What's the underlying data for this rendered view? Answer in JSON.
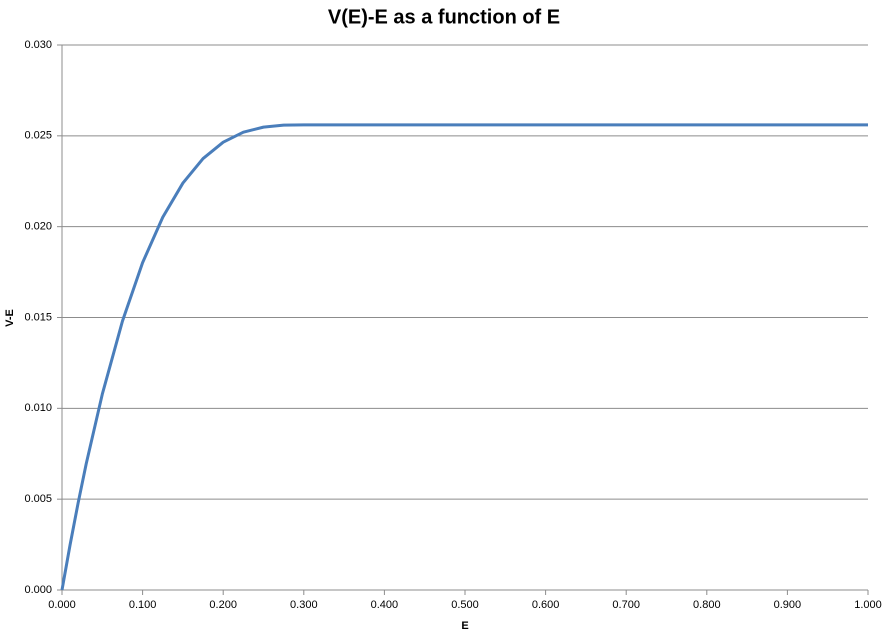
{
  "chart_data": {
    "type": "line",
    "title": "V(E)-E as a function of E",
    "x_label": "E",
    "y_label": "V-E",
    "x": [
      0,
      0.01,
      0.02,
      0.03,
      0.05,
      0.075,
      0.1,
      0.125,
      0.15,
      0.175,
      0.2,
      0.225,
      0.25,
      0.275,
      0.3,
      0.4,
      0.5,
      0.6,
      0.7,
      0.8,
      0.9,
      1.0
    ],
    "series": [
      {
        "name": "V-E",
        "color": "#4a7ebb",
        "values": [
          0,
          0.00248,
          0.00479,
          0.00694,
          0.01078,
          0.0148,
          0.01802,
          0.02052,
          0.0224,
          0.02375,
          0.02465,
          0.0252,
          0.02548,
          0.02559,
          0.0256,
          0.0256,
          0.0256,
          0.0256,
          0.0256,
          0.0256,
          0.0256,
          0.0256
        ]
      }
    ],
    "xlim": [
      0,
      1.0
    ],
    "ylim": [
      0,
      0.03
    ],
    "xticks": [
      {
        "value": 0,
        "label": "0.000"
      },
      {
        "value": 0.1,
        "label": "0.100"
      },
      {
        "value": 0.2,
        "label": "0.200"
      },
      {
        "value": 0.3,
        "label": "0.300"
      },
      {
        "value": 0.4,
        "label": "0.400"
      },
      {
        "value": 0.5,
        "label": "0.500"
      },
      {
        "value": 0.6,
        "label": "0.600"
      },
      {
        "value": 0.7,
        "label": "0.700"
      },
      {
        "value": 0.8,
        "label": "0.800"
      },
      {
        "value": 0.9,
        "label": "0.900"
      },
      {
        "value": 1.0,
        "label": "1.000"
      }
    ],
    "yticks": [
      {
        "value": 0,
        "label": "0.000"
      },
      {
        "value": 0.005,
        "label": "0.005"
      },
      {
        "value": 0.01,
        "label": "0.010"
      },
      {
        "value": 0.015,
        "label": "0.015"
      },
      {
        "value": 0.02,
        "label": "0.020"
      },
      {
        "value": 0.025,
        "label": "0.025"
      },
      {
        "value": 0.03,
        "label": "0.030"
      }
    ],
    "grid": true
  }
}
